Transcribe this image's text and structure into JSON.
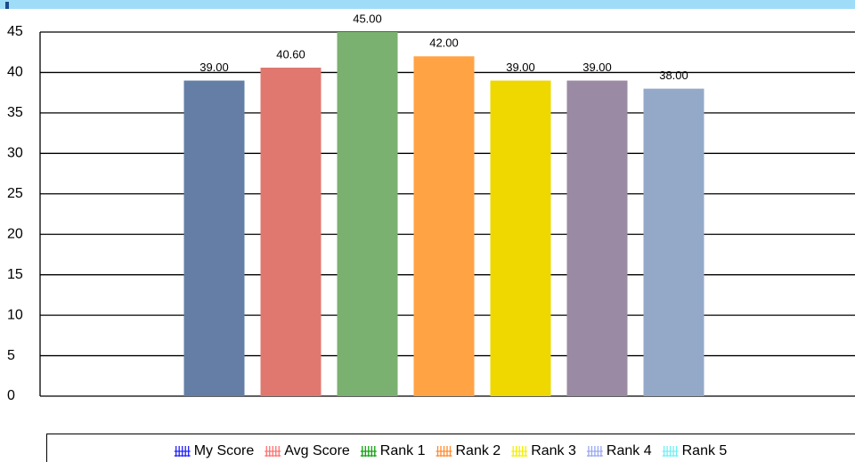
{
  "chart_data": {
    "type": "bar",
    "ylim": [
      0,
      45
    ],
    "yticks": [
      0,
      5,
      10,
      15,
      20,
      25,
      30,
      35,
      40,
      45
    ],
    "grid": true,
    "series": [
      {
        "name": "My Score",
        "color": "#647ea6",
        "legend_color": "#1f1fff",
        "values": [
          39
        ],
        "value_labels": [
          "39.00"
        ]
      },
      {
        "name": "Avg Score",
        "color": "#e07870",
        "legend_color": "#ff7070",
        "values": [
          40.6
        ],
        "value_labels": [
          "40.60"
        ]
      },
      {
        "name": "Rank 1",
        "color": "#7ab070",
        "legend_color": "#10a010",
        "values": [
          45
        ],
        "value_labels": [
          "45.00"
        ]
      },
      {
        "name": "Rank 2",
        "color": "#ffa345",
        "legend_color": "#ff8a30",
        "values": [
          42
        ],
        "value_labels": [
          "42.00"
        ]
      },
      {
        "name": "Rank 3",
        "color": "#eed800",
        "legend_color": "#f4f000",
        "values": [
          39
        ],
        "value_labels": [
          "39.00"
        ]
      },
      {
        "name": "Rank 4",
        "color": "#9b8aa3",
        "legend_color": "#9aa8f0",
        "values": [
          39
        ],
        "value_labels": [
          "39.00"
        ]
      },
      {
        "name": "Rank 5",
        "color": "#94a9c8",
        "legend_color": "#70f0f4",
        "values": [
          38
        ],
        "value_labels": [
          "38.00"
        ]
      }
    ]
  }
}
